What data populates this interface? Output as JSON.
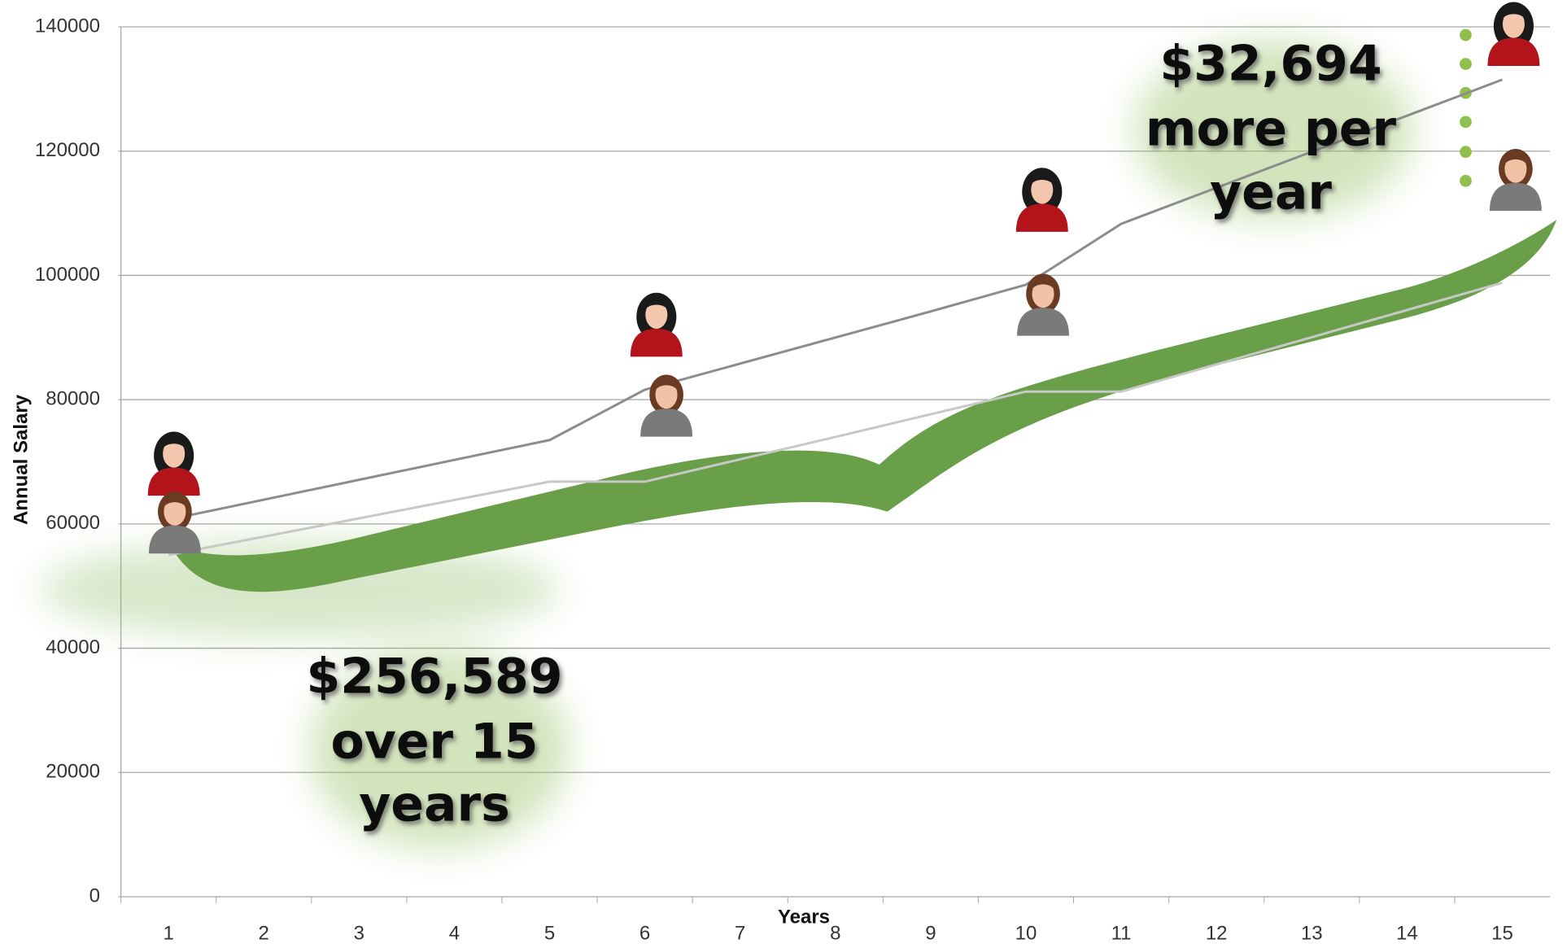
{
  "chart_data": {
    "type": "line",
    "categories": [
      "1",
      "2",
      "3",
      "4",
      "5",
      "6",
      "7",
      "8",
      "9",
      "10",
      "11",
      "12",
      "13",
      "14",
      "15"
    ],
    "series": [
      {
        "color": "#8c8c8c",
        "values": [
          60700,
          63900,
          67100,
          70300,
          73500,
          81600,
          85800,
          90000,
          94200,
          98500,
          108300,
          114100,
          119900,
          125700,
          131500
        ]
      },
      {
        "color": "#c8c8c8",
        "values": [
          55000,
          57950,
          60900,
          63850,
          66800,
          66800,
          70400,
          74000,
          77650,
          81300,
          81300,
          85675,
          90050,
          94425,
          98800
        ]
      }
    ],
    "ylim": [
      0,
      140000
    ],
    "yticks": [
      0,
      20000,
      40000,
      60000,
      80000,
      100000,
      120000,
      140000
    ],
    "grid": true,
    "xlabel": "Years",
    "ylabel": "Annual Salary",
    "annotations": [
      {
        "lines": [
          "$256,589",
          "over 15",
          "years"
        ]
      },
      {
        "lines": [
          "$32,694",
          "more per",
          "year"
        ]
      }
    ]
  }
}
